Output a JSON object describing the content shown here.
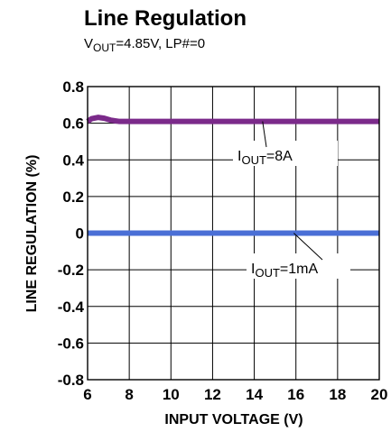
{
  "chart_data": {
    "type": "line",
    "title": "Line Regulation",
    "subtitle": {
      "prefix": "V",
      "sub": "OUT",
      "suffix": "=4.85V, LP#=0"
    },
    "xlabel": "INPUT VOLTAGE (V)",
    "ylabel": "LINE REGULATION (%)",
    "xlim": [
      6,
      20
    ],
    "ylim": [
      -0.8,
      0.8
    ],
    "x_ticks": [
      "6",
      "8",
      "10",
      "12",
      "14",
      "16",
      "18",
      "20"
    ],
    "y_ticks": [
      "0.8",
      "0.6",
      "0.4",
      "0.2",
      "0",
      "-0.2",
      "-0.4",
      "-0.6",
      "-0.8"
    ],
    "grid": true,
    "series": [
      {
        "name": "IOUT=8A",
        "label": {
          "prefix": "I",
          "sub": "OUT",
          "suffix": "=8A"
        },
        "color": "#7b2a8a",
        "x": [
          6.0,
          6.2,
          6.5,
          6.8,
          7.1,
          7.5,
          8.0,
          9.0,
          10.0,
          12.0,
          14.0,
          16.0,
          18.0,
          20.0
        ],
        "y": [
          0.61,
          0.625,
          0.632,
          0.627,
          0.617,
          0.61,
          0.61,
          0.61,
          0.61,
          0.61,
          0.61,
          0.61,
          0.61,
          0.61
        ]
      },
      {
        "name": "IOUT=1mA",
        "label": {
          "prefix": "I",
          "sub": "OUT",
          "suffix": "=1mA"
        },
        "color": "#4a6fd6",
        "x": [
          6.0,
          8.0,
          10.0,
          12.0,
          14.0,
          16.0,
          18.0,
          20.0
        ],
        "y": [
          0.0,
          0.0,
          0.0,
          0.0,
          0.0,
          0.0,
          0.0,
          0.0
        ]
      }
    ]
  }
}
